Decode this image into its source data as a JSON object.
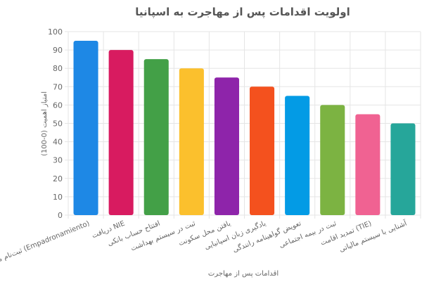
{
  "chart_data": {
    "type": "bar",
    "title": "اولویت اقدامات پس از مهاجرت به اسپانیا",
    "xlabel": "اقدامات پس از مهاجرت",
    "ylabel": "امتیاز اهمیت (0-100)",
    "ylim": [
      0,
      100
    ],
    "yticks": [
      0,
      10,
      20,
      30,
      40,
      50,
      60,
      70,
      80,
      90,
      100
    ],
    "grid": true,
    "categories": [
      "ثبت‌نام محلی (Empadronamiento)",
      "دریافت NIE",
      "افتتاح حساب بانکی",
      "ثبت در سیستم بهداشت",
      "یافتن محل سکونت",
      "یادگیری زبان اسپانیایی",
      "تعویض گواهینامه رانندگی",
      "ثبت در بیمه اجتماعی",
      "تمدید اقامت (TIE)",
      "آشنایی با سیستم مالیاتی"
    ],
    "values": [
      95,
      90,
      85,
      80,
      75,
      70,
      65,
      60,
      55,
      50
    ],
    "colors": [
      "#1e88e5",
      "#d81b60",
      "#43a047",
      "#fbc02d",
      "#8e24aa",
      "#f4511e",
      "#039be5",
      "#7cb342",
      "#f06292",
      "#26a69a"
    ]
  }
}
